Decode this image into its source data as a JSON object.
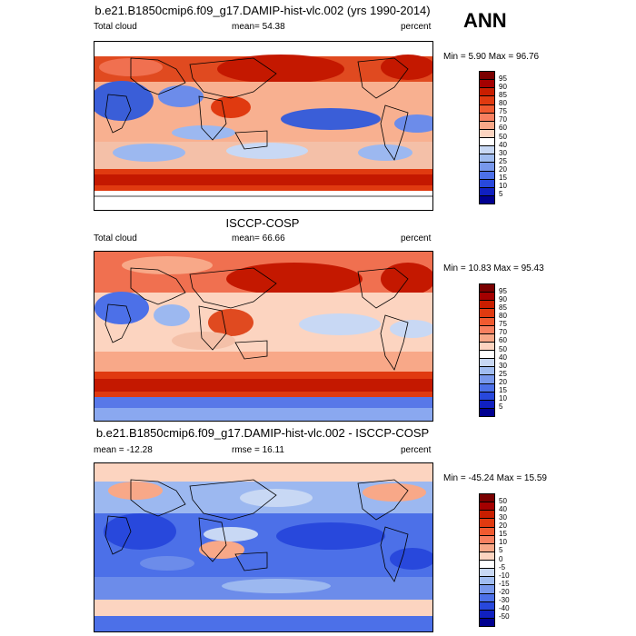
{
  "season": "ANN",
  "panels": [
    {
      "title": "b.e21.B1850cmip6.f09_g17.DAMIP-hist-vlc.002 (yrs 1990-2014)",
      "left_label": "Total cloud",
      "mid_label": "mean=  54.38",
      "right_label": "percent",
      "minmax": "Min =   5.90 Max =  96.76"
    },
    {
      "title": "ISCCP-COSP",
      "left_label": "Total cloud",
      "mid_label": "mean=  66.66",
      "right_label": "percent",
      "minmax": "Min =  10.83 Max =  95.43"
    },
    {
      "title": "b.e21.B1850cmip6.f09_g17.DAMIP-hist-vlc.002 - ISCCP-COSP",
      "left_label": "mean = -12.28",
      "mid_label": "rmse =  16.11",
      "right_label": "percent",
      "minmax": "Min = -45.24 Max =  15.59"
    }
  ],
  "colorbar_abs": {
    "labels": [
      "95",
      "90",
      "85",
      "80",
      "75",
      "70",
      "60",
      "50",
      "40",
      "30",
      "25",
      "20",
      "15",
      "10",
      "5"
    ],
    "colors": [
      "#7a0000",
      "#a40000",
      "#c81e00",
      "#e03a10",
      "#f05a30",
      "#f88060",
      "#f8a888",
      "#fcd4c0",
      "#ffffff",
      "#c8d8f4",
      "#a0bcf0",
      "#7898ec",
      "#4c70e8",
      "#2848dc",
      "#1020c0",
      "#000090"
    ]
  },
  "colorbar_diff": {
    "labels": [
      "50",
      "40",
      "30",
      "20",
      "15",
      "10",
      "5",
      "0",
      "-5",
      "-10",
      "-15",
      "-20",
      "-30",
      "-40",
      "-50"
    ],
    "colors": [
      "#7a0000",
      "#a40000",
      "#c81e00",
      "#e03a10",
      "#f05a30",
      "#f88060",
      "#f8a888",
      "#fcd4c0",
      "#ffffff",
      "#c8d8f4",
      "#a0bcf0",
      "#7898ec",
      "#4c70e8",
      "#2848dc",
      "#1020c0",
      "#000090"
    ]
  }
}
